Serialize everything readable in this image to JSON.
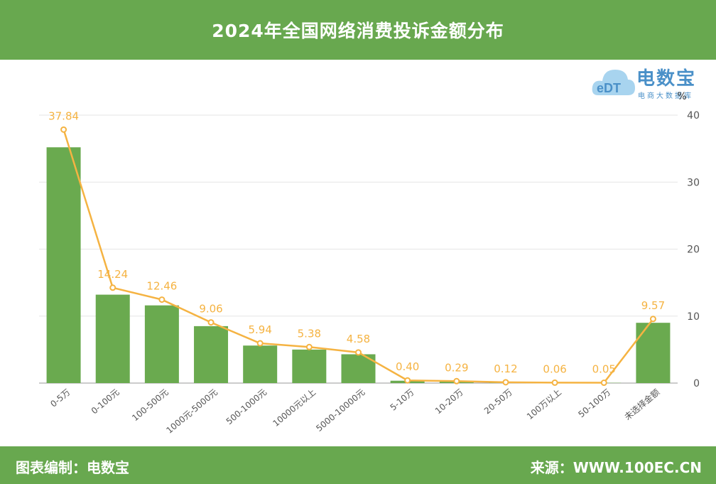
{
  "header": {
    "title": "2024年全国网络消费投诉金额分布"
  },
  "logo": {
    "brand": "电数宝",
    "tagline": "电商大数据库",
    "mark": "eDT"
  },
  "footer": {
    "left": "图表编制：电数宝",
    "right": "来源：WWW.100EC.CN"
  },
  "colors": {
    "bar": "#6aaa4f",
    "line": "#f5b342",
    "header": "#68a84f"
  },
  "chart_data": {
    "type": "bar",
    "title": "2024年全国网络消费投诉金额分布",
    "categories": [
      "0-5万",
      "0-100元",
      "100-500元",
      "1000元-5000元",
      "500-1000元",
      "10000元以上",
      "5000-10000元",
      "5-10万",
      "10-20万",
      "20-50万",
      "100万以上",
      "50-100万",
      "未选择金额"
    ],
    "series": [
      {
        "type": "bar",
        "values": [
          35.2,
          13.2,
          11.6,
          8.5,
          5.6,
          5.0,
          4.3,
          0.35,
          0.25,
          0.1,
          0.05,
          0.04,
          9.0
        ]
      },
      {
        "type": "line",
        "values": [
          37.84,
          14.24,
          12.46,
          9.06,
          5.94,
          5.38,
          4.58,
          0.4,
          0.29,
          0.12,
          0.06,
          0.05,
          9.57
        ]
      }
    ],
    "labels": [
      "37.84",
      "14.24",
      "12.46",
      "9.06",
      "5.94",
      "5.38",
      "4.58",
      "0.40",
      "0.29",
      "0.12",
      "0.06",
      "0.05",
      "9.57"
    ],
    "ylabel": "%",
    "ylim": [
      0,
      40
    ],
    "yticks": [
      0,
      10,
      20,
      30,
      40
    ],
    "grid": true
  }
}
